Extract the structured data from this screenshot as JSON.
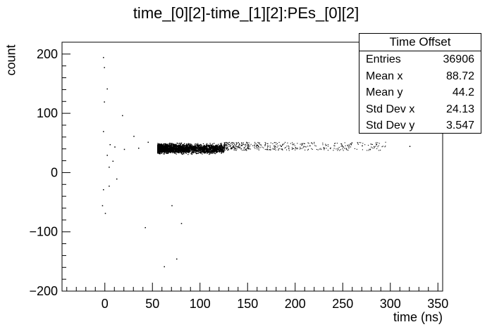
{
  "chart_data": {
    "type": "scatter",
    "title": "time_[0][2]-time_[1][2]:PEs_[0][2]",
    "xlabel": "time (ns)",
    "ylabel": "count",
    "xlim": [
      -45,
      355
    ],
    "ylim": [
      -200,
      220
    ],
    "x_ticks": [
      0,
      50,
      100,
      150,
      200,
      250,
      300,
      350
    ],
    "y_ticks": [
      -200,
      -100,
      0,
      100,
      200
    ],
    "y_tick_labels": [
      "−200",
      "−100",
      "0",
      "100",
      "200"
    ],
    "grid": false,
    "marker": "dot",
    "color": "#000000",
    "points": [
      [
        -2,
        195
      ],
      [
        -1,
        178
      ],
      [
        2,
        142
      ],
      [
        -1,
        120
      ],
      [
        18,
        97
      ],
      [
        -2,
        70
      ],
      [
        30,
        62
      ],
      [
        45,
        52
      ],
      [
        5,
        48
      ],
      [
        10,
        44
      ],
      [
        20,
        40
      ],
      [
        35,
        42
      ],
      [
        2,
        30
      ],
      [
        8,
        20
      ],
      [
        4,
        10
      ],
      [
        12,
        -10
      ],
      [
        -2,
        -28
      ],
      [
        4,
        -22
      ],
      [
        -3,
        -55
      ],
      [
        42,
        -92
      ],
      [
        70,
        -55
      ],
      [
        80,
        -85
      ],
      [
        75,
        -145
      ],
      [
        62,
        -158
      ],
      [
        0,
        -68
      ],
      [
        58,
        48
      ],
      [
        60,
        40
      ],
      [
        62,
        35
      ],
      [
        65,
        45
      ],
      [
        68,
        38
      ],
      [
        70,
        50
      ],
      [
        72,
        42
      ],
      [
        75,
        36
      ],
      [
        78,
        47
      ],
      [
        80,
        41
      ],
      [
        82,
        33
      ],
      [
        85,
        45
      ],
      [
        88,
        39
      ],
      [
        90,
        48
      ],
      [
        92,
        44
      ],
      [
        95,
        37
      ],
      [
        98,
        46
      ],
      [
        100,
        42
      ],
      [
        104,
        35
      ],
      [
        108,
        47
      ],
      [
        112,
        43
      ],
      [
        118,
        39
      ],
      [
        125,
        46
      ],
      [
        132,
        41
      ],
      [
        140,
        44
      ],
      [
        150,
        42
      ],
      [
        160,
        47
      ],
      [
        170,
        40
      ],
      [
        185,
        45
      ],
      [
        200,
        43
      ],
      [
        215,
        46
      ],
      [
        230,
        42
      ],
      [
        250,
        44
      ],
      [
        270,
        46
      ],
      [
        285,
        48
      ],
      [
        320,
        45
      ]
    ],
    "dense_band": {
      "x_range": [
        55,
        125
      ],
      "y_range": [
        30,
        52
      ],
      "center_y": 44
    }
  },
  "stats": {
    "title": "Time Offset",
    "rows": [
      {
        "label": "Entries",
        "value": "36906"
      },
      {
        "label": "Mean x",
        "value": "88.72"
      },
      {
        "label": "Mean y",
        "value": "44.2"
      },
      {
        "label": "Std Dev x",
        "value": "24.13"
      },
      {
        "label": "Std Dev y",
        "value": "3.547"
      }
    ]
  }
}
